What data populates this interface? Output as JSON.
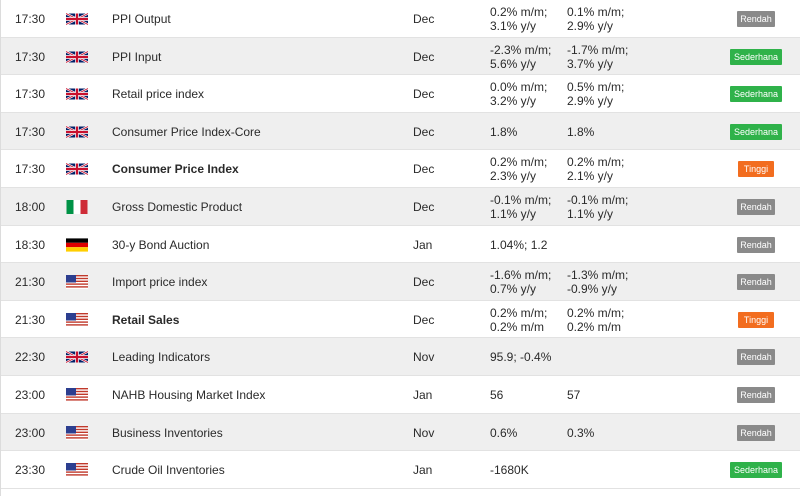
{
  "events": [
    {
      "time": "17:30",
      "country": "uk",
      "event": "PPI Output",
      "bold": false,
      "period": "Dec",
      "actual": [
        "0.2% m/m;",
        "3.1% y/y"
      ],
      "forecast": [
        "0.1% m/m;",
        "2.9% y/y"
      ],
      "impact": "low",
      "impact_label": "Rendah"
    },
    {
      "time": "17:30",
      "country": "uk",
      "event": "PPI Input",
      "bold": false,
      "period": "Dec",
      "actual": [
        "-2.3% m/m;",
        "5.6% y/y"
      ],
      "forecast": [
        "-1.7% m/m;",
        "3.7% y/y"
      ],
      "impact": "med",
      "impact_label": "Sederhana"
    },
    {
      "time": "17:30",
      "country": "uk",
      "event": "Retail price index",
      "bold": false,
      "period": "Dec",
      "actual": [
        "0.0% m/m;",
        "3.2% y/y"
      ],
      "forecast": [
        "0.5% m/m;",
        "2.9% y/y"
      ],
      "impact": "med",
      "impact_label": "Sederhana"
    },
    {
      "time": "17:30",
      "country": "uk",
      "event": "Consumer Price Index-Core",
      "bold": false,
      "period": "Dec",
      "actual": [
        "1.8%"
      ],
      "forecast": [
        "1.8%"
      ],
      "impact": "med",
      "impact_label": "Sederhana"
    },
    {
      "time": "17:30",
      "country": "uk",
      "event": "Consumer Price Index",
      "bold": true,
      "period": "Dec",
      "actual": [
        "0.2% m/m;",
        "2.3% y/y"
      ],
      "forecast": [
        "0.2% m/m;",
        "2.1% y/y"
      ],
      "impact": "high",
      "impact_label": "Tinggi"
    },
    {
      "time": "18:00",
      "country": "it",
      "event": "Gross Domestic Product",
      "bold": false,
      "period": "Dec",
      "actual": [
        "-0.1% m/m;",
        "1.1% y/y"
      ],
      "forecast": [
        "-0.1% m/m;",
        "1.1% y/y"
      ],
      "impact": "low",
      "impact_label": "Rendah"
    },
    {
      "time": "18:30",
      "country": "de",
      "event": "30-y Bond Auction",
      "bold": false,
      "period": "Jan",
      "actual": [
        "1.04%; 1.2"
      ],
      "forecast": [],
      "impact": "low",
      "impact_label": "Rendah"
    },
    {
      "time": "21:30",
      "country": "us",
      "event": "Import price index",
      "bold": false,
      "period": "Dec",
      "actual": [
        "-1.6% m/m;",
        "0.7% y/y"
      ],
      "forecast": [
        "-1.3% m/m;",
        "-0.9% y/y"
      ],
      "impact": "low",
      "impact_label": "Rendah"
    },
    {
      "time": "21:30",
      "country": "us",
      "event": "Retail Sales",
      "bold": true,
      "period": "Dec",
      "actual": [
        "0.2% m/m;",
        "0.2% m/m"
      ],
      "forecast": [
        "0.2% m/m;",
        "0.2% m/m"
      ],
      "impact": "high",
      "impact_label": "Tinggi"
    },
    {
      "time": "22:30",
      "country": "uk",
      "event": "Leading Indicators",
      "bold": false,
      "period": "Nov",
      "actual": [
        "95.9; -0.4%"
      ],
      "forecast": [],
      "impact": "low",
      "impact_label": "Rendah"
    },
    {
      "time": "23:00",
      "country": "us",
      "event": "NAHB Housing Market Index",
      "bold": false,
      "period": "Jan",
      "actual": [
        "56"
      ],
      "forecast": [
        "57"
      ],
      "impact": "low",
      "impact_label": "Rendah"
    },
    {
      "time": "23:00",
      "country": "us",
      "event": "Business Inventories",
      "bold": false,
      "period": "Nov",
      "actual": [
        "0.6%"
      ],
      "forecast": [
        "0.3%"
      ],
      "impact": "low",
      "impact_label": "Rendah"
    },
    {
      "time": "23:30",
      "country": "us",
      "event": "Crude Oil Inventories",
      "bold": false,
      "period": "Jan",
      "actual": [
        "-1680K"
      ],
      "forecast": [],
      "impact": "med",
      "impact_label": "Sederhana"
    }
  ],
  "colors": {
    "low": "#8a8a8a",
    "med": "#2fb24a",
    "high": "#f26d1f",
    "row_alt": "#efefef"
  }
}
